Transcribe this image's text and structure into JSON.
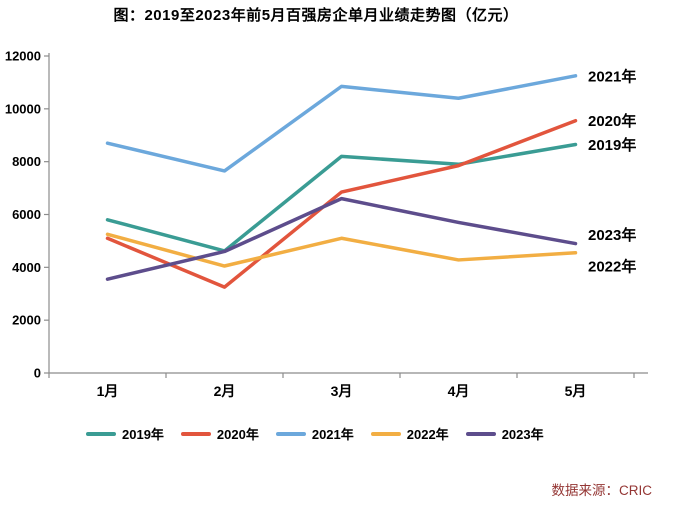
{
  "title": "图：2019至2023年前5月百强房企单月业绩走势图（亿元）",
  "source_note": "数据来源：CRIC",
  "chart_data": {
    "type": "line",
    "title": "图：2019至2023年前5月百强房企单月业绩走势图（亿元）",
    "unit": "亿元",
    "categories": [
      "1月",
      "2月",
      "3月",
      "4月",
      "5月"
    ],
    "series": [
      {
        "name": "2019年",
        "color": "#3A9C94",
        "values": [
          5800,
          4620,
          8200,
          7900,
          8650
        ]
      },
      {
        "name": "2020年",
        "color": "#E2553D",
        "values": [
          5100,
          3250,
          6850,
          7850,
          9550
        ]
      },
      {
        "name": "2021年",
        "color": "#6CA8DC",
        "values": [
          8700,
          7650,
          10850,
          10400,
          11250
        ]
      },
      {
        "name": "2022年",
        "color": "#F2AE43",
        "values": [
          5250,
          4050,
          5100,
          4280,
          4550
        ]
      },
      {
        "name": "2023年",
        "color": "#5D4D8C",
        "values": [
          3550,
          4600,
          6600,
          5700,
          4900
        ]
      }
    ],
    "ylim": [
      0,
      12000
    ],
    "yticks": [
      0,
      2000,
      4000,
      6000,
      8000,
      10000,
      12000
    ],
    "grid": false,
    "legend_position": "bottom",
    "end_labels": [
      "2021年",
      "2020年",
      "2019年",
      "2023年",
      "2022年"
    ],
    "axis_color": "#8C8C8C"
  }
}
